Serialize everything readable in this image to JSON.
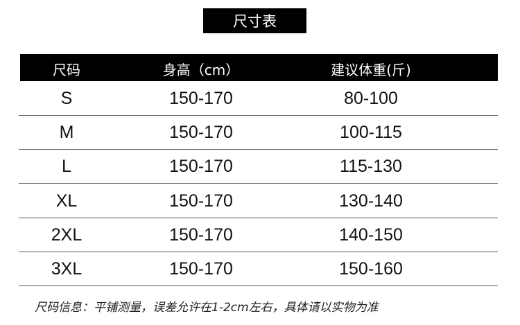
{
  "title": "尺寸表",
  "headers": [
    "尺码",
    "身高（cm）",
    "建议体重(斤)"
  ],
  "rows": [
    [
      "S",
      "150-170",
      "80-100"
    ],
    [
      "M",
      "150-170",
      "100-115"
    ],
    [
      "L",
      "150-170",
      "115-130"
    ],
    [
      "XL",
      "150-170",
      "130-140"
    ],
    [
      "2XL",
      "150-170",
      "140-150"
    ],
    [
      "3XL",
      "150-170",
      "150-160"
    ]
  ],
  "note": "尺码信息：平铺测量，误差允许在1-2cm左右，具体请以实物为准"
}
